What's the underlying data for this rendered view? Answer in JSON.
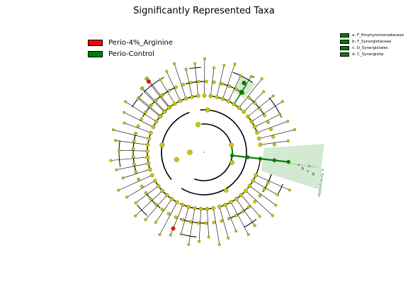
{
  "title": "Significantly Represented Taxa",
  "class_legend": [
    {
      "label": "Perio-4%_Arginine",
      "color": "#ff0000"
    },
    {
      "label": "Perio-Control",
      "color": "#008000"
    }
  ],
  "clade_legend": [
    {
      "label": "a: F_Porphyromonadaceae",
      "color": "#008000"
    },
    {
      "label": "b: F_Synergistaceae",
      "color": "#008000"
    },
    {
      "label": "c: O_Synergistales",
      "color": "#008000"
    },
    {
      "label": "d: C_Synergistia",
      "color": "#008000"
    }
  ],
  "clade_labels": {
    "a": "a",
    "synergistetes": "p_Synergistetes"
  },
  "colors": {
    "node": "#c8c800",
    "node_edge": "#555500",
    "enriched_control": "#008000",
    "enriched_arginine": "#ff0000",
    "shade_control": "#7fbf7f"
  }
}
